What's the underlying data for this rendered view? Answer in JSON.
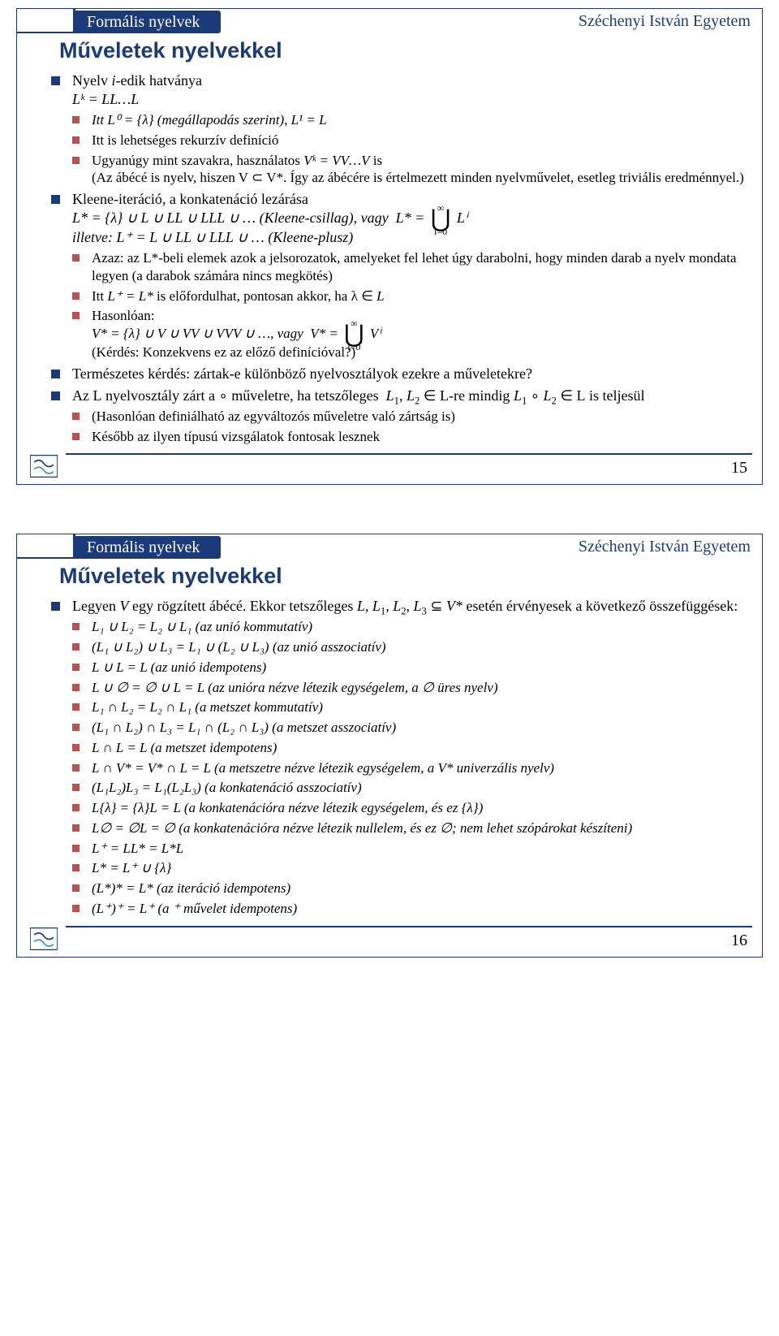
{
  "colors": {
    "brand": "#1a3a7a",
    "accent_bullet": "#c0504d",
    "background": "#ffffff",
    "text": "#000000"
  },
  "header": {
    "course": "Formális nyelvek",
    "university": "Széchenyi István Egyetem"
  },
  "slide15": {
    "title": "Műveletek nyelvekkel",
    "pagenum": "15",
    "b1": "Nyelv i-edik hatványa",
    "b1a": "Lᵏ = LL…L",
    "b1s1": "Itt L⁰ = {λ} (megállapodás szerint), L¹ = L",
    "b1s2": "Itt is lehetséges rekurzív definíció",
    "b1s3": "Ugyanúgy mint szavakra, használatos Vᵏ = VV…V is",
    "b1s3a": "(Az ábécé is nyelv, hiszen V ⊂ V*. Így az ábécére is értelmezett minden nyelvművelet, esetleg triviális eredménnyel.)",
    "b2": "Kleene-iteráció, a konkatenáció lezárása",
    "b2a": "L* = {λ} ∪ L ∪ LL ∪ LLL ∪ … (Kleene-csillag), vagy",
    "b2a_eq": "L* =",
    "b2a_sum": "Lⁱ",
    "b2b": "illetve: L⁺ = L ∪ LL ∪ LLL ∪ … (Kleene-plusz)",
    "b2s1": "Azaz: az L*-beli elemek azok a jelsorozatok, amelyeket fel lehet úgy darabolni, hogy minden darab a nyelv mondata legyen (a darabok számára nincs megkötés)",
    "b2s2": "Itt L⁺ = L* is előfordulhat, pontosan akkor, ha λ ∈ L",
    "b2s3": "Hasonlóan:",
    "b2s3a": "V* = {λ} ∪ V ∪ VV ∪ VVV ∪ …, vagy",
    "b2s3b": "V* =",
    "b2s3c": "Vⁱ",
    "b2s3d": "(Kérdés: Konzekvens ez az előző definícióval?)",
    "b3": "Természetes kérdés: zártak-e különböző nyelvosztályok ezekre a műveletekre?",
    "b4": "Az 𝓛 nyelvosztály zárt a ∘ műveletre, ha tetszőleges  L₁, L₂ ∈ 𝓛-re mindig L₁ ∘ L₂ ∈ 𝓛 is teljesül",
    "b4s1": "(Hasonlóan definiálható az egyváltozós műveletre való zártság is)",
    "b4s2": "Később az ilyen típusú vizsgálatok fontosak lesznek",
    "union_top": "∞",
    "union_bot": "i=0"
  },
  "slide16": {
    "title": "Műveletek nyelvekkel",
    "pagenum": "16",
    "intro": "Legyen V egy rögzített ábécé. Ekkor tetszőleges L, L₁, L₂, L₃ ⊆ V* esetén érvényesek a következő összefüggések:",
    "items": [
      "L₁ ∪ L₂ = L₂ ∪ L₁ (az unió kommutatív)",
      "(L₁ ∪ L₂) ∪ L₃ = L₁ ∪ (L₂ ∪ L₃) (az unió asszociatív)",
      "L ∪ L = L (az unió idempotens)",
      "L ∪ ∅ = ∅ ∪ L = L (az unióra nézve létezik egységelem, a ∅ üres nyelv)",
      "L₁ ∩ L₂ = L₂ ∩ L₁ (a metszet kommutatív)",
      "(L₁ ∩ L₂) ∩ L₃ = L₁ ∩ (L₂ ∩ L₃) (a metszet asszociatív)",
      "L ∩ L = L (a metszet idempotens)",
      "L ∩ V* = V* ∩ L = L (a metszetre nézve létezik egységelem, a V* univerzális nyelv)",
      "(L₁L₂)L₃ = L₁(L₂L₃) (a konkatenáció asszociatív)",
      "L{λ} = {λ}L = L (a konkatenációra nézve létezik egységelem, és ez {λ})",
      "L∅ = ∅L = ∅ (a konkatenációra nézve létezik nullelem, és ez ∅; nem lehet szópárokat készíteni)",
      "L⁺ = LL* = L*L",
      "L* = L⁺ ∪ {λ}",
      "(L*)* = L* (az iteráció idempotens)",
      "(L⁺)⁺ = L⁺ (a ⁺ művelet idempotens)"
    ]
  }
}
